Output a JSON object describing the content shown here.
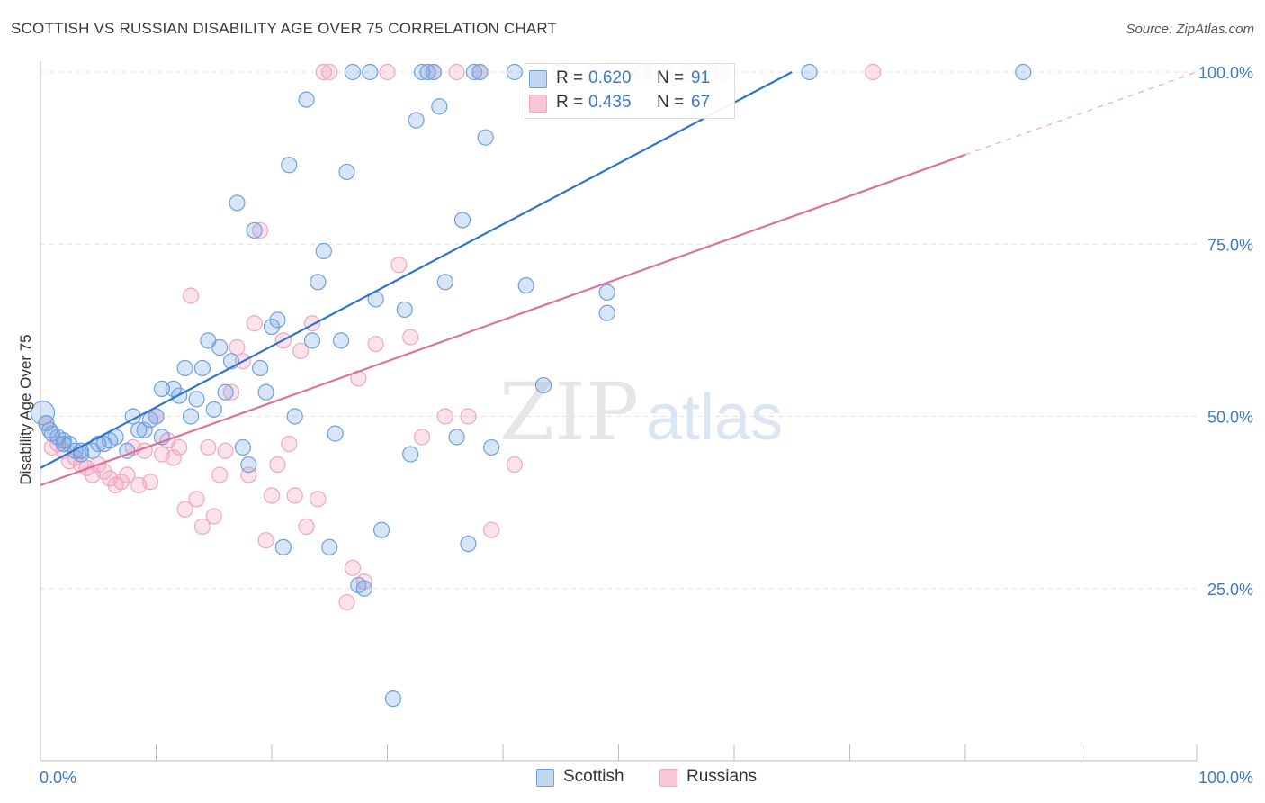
{
  "title": "SCOTTISH VS RUSSIAN DISABILITY AGE OVER 75 CORRELATION CHART",
  "source": "Source: ZipAtlas.com",
  "watermark": {
    "zip": "ZIP",
    "atlas": "atlas"
  },
  "legend": {
    "r_label": "R =",
    "n_label": "N =",
    "scottish": {
      "r": "0.620",
      "n": "91"
    },
    "russians": {
      "r": "0.435",
      "n": "67"
    }
  },
  "chart_data": {
    "type": "scatter",
    "title": "SCOTTISH VS RUSSIAN DISABILITY AGE OVER 75 CORRELATION CHART",
    "xlabel": "",
    "ylabel": "Disability Age Over 75",
    "xlim": [
      0,
      100
    ],
    "ylim": [
      0,
      100
    ],
    "x_tick_labels": [
      "0.0%",
      "100.0%"
    ],
    "y_tick_labels": [
      "25.0%",
      "50.0%",
      "75.0%",
      "100.0%"
    ],
    "y_ticks": [
      25,
      50,
      75,
      100
    ],
    "grid": true,
    "legend_position": "top-center",
    "colors": {
      "scottish": "#6fa0e0",
      "russians": "#f2a6c0",
      "scottish_line": "#2f74d0",
      "russians_line": "#e0709a",
      "tick_text": "#3c78c8"
    },
    "series": [
      {
        "name": "Scottish",
        "r": 0.62,
        "n": 91,
        "trend": {
          "x0": 0,
          "y0": 42.5,
          "x1": 65,
          "y1": 100
        },
        "points": [
          [
            0.2,
            50.5
          ],
          [
            0.8,
            48
          ],
          [
            1.5,
            47
          ],
          [
            2,
            46.5
          ],
          [
            2.5,
            46
          ],
          [
            3,
            45
          ],
          [
            3.5,
            45
          ],
          [
            4.5,
            45
          ],
          [
            5,
            46
          ],
          [
            6,
            46.5
          ],
          [
            6.5,
            47
          ],
          [
            7.5,
            45
          ],
          [
            8,
            50
          ],
          [
            8.5,
            48
          ],
          [
            9,
            48
          ],
          [
            9.5,
            49.5
          ],
          [
            10,
            50
          ],
          [
            10.5,
            47
          ],
          [
            10.5,
            54
          ],
          [
            11.5,
            54
          ],
          [
            12,
            53
          ],
          [
            12.5,
            57
          ],
          [
            13,
            50
          ],
          [
            13.5,
            52.5
          ],
          [
            14,
            57
          ],
          [
            14.5,
            61
          ],
          [
            15,
            51
          ],
          [
            15.5,
            60
          ],
          [
            16,
            53.5
          ],
          [
            16.5,
            58
          ],
          [
            17,
            81
          ],
          [
            17.5,
            45.5
          ],
          [
            18,
            43
          ],
          [
            18.5,
            77
          ],
          [
            19,
            57
          ],
          [
            19.5,
            53.5
          ],
          [
            20,
            63
          ],
          [
            20.5,
            64
          ],
          [
            21,
            31
          ],
          [
            21.5,
            86.5
          ],
          [
            22,
            50
          ],
          [
            23,
            96
          ],
          [
            23.5,
            61
          ],
          [
            24,
            69.5
          ],
          [
            24.5,
            74
          ],
          [
            25,
            31
          ],
          [
            25.5,
            47.5
          ],
          [
            26,
            61
          ],
          [
            26.5,
            85.5
          ],
          [
            27,
            100
          ],
          [
            27.5,
            25.5
          ],
          [
            28,
            25
          ],
          [
            28.5,
            100
          ],
          [
            29,
            67
          ],
          [
            29.5,
            33.5
          ],
          [
            30.5,
            9
          ],
          [
            31.5,
            65.5
          ],
          [
            32,
            44.5
          ],
          [
            32.5,
            93
          ],
          [
            33,
            100
          ],
          [
            33.5,
            100
          ],
          [
            34,
            100
          ],
          [
            34.5,
            95
          ],
          [
            35,
            69.5
          ],
          [
            36,
            47
          ],
          [
            36.5,
            78.5
          ],
          [
            37,
            31.5
          ],
          [
            37.5,
            100
          ],
          [
            38,
            100
          ],
          [
            38.5,
            90.5
          ],
          [
            39,
            45.5
          ],
          [
            41,
            100
          ],
          [
            42,
            69
          ],
          [
            43.5,
            54.5
          ],
          [
            45,
            100
          ],
          [
            48,
            100
          ],
          [
            49,
            68
          ],
          [
            49,
            65
          ],
          [
            52,
            100
          ],
          [
            53,
            100
          ],
          [
            54,
            100
          ],
          [
            56,
            100
          ],
          [
            58,
            100
          ],
          [
            59,
            100
          ],
          [
            66.5,
            100
          ],
          [
            85,
            100
          ],
          [
            0.5,
            49
          ],
          [
            1,
            47.5
          ],
          [
            2,
            46
          ],
          [
            3.5,
            44.5
          ],
          [
            5.5,
            46
          ]
        ]
      },
      {
        "name": "Russians",
        "r": 0.435,
        "n": 67,
        "trend": {
          "x0": 0,
          "y0": 40,
          "x1": 80,
          "y1": 88
        },
        "trend_dash": {
          "x0": 80,
          "y0": 88,
          "x1": 100,
          "y1": 100
        },
        "points": [
          [
            0.5,
            49
          ],
          [
            1,
            45.5
          ],
          [
            1.5,
            46
          ],
          [
            2,
            45
          ],
          [
            2.5,
            43.5
          ],
          [
            3,
            44
          ],
          [
            3.5,
            43
          ],
          [
            4,
            42.5
          ],
          [
            4.5,
            41.5
          ],
          [
            5,
            43
          ],
          [
            5.5,
            42
          ],
          [
            6,
            41
          ],
          [
            6.5,
            40
          ],
          [
            7,
            40.5
          ],
          [
            7.5,
            41.5
          ],
          [
            8,
            45.5
          ],
          [
            8.5,
            40
          ],
          [
            9,
            45
          ],
          [
            9.5,
            40.5
          ],
          [
            10,
            50
          ],
          [
            10.5,
            44.5
          ],
          [
            11,
            46.5
          ],
          [
            11.5,
            44
          ],
          [
            12,
            45.5
          ],
          [
            12.5,
            36.5
          ],
          [
            13,
            67.5
          ],
          [
            13.5,
            38
          ],
          [
            14,
            34
          ],
          [
            14.5,
            45.5
          ],
          [
            15,
            35.5
          ],
          [
            15.5,
            41.5
          ],
          [
            16,
            45
          ],
          [
            16.5,
            53.5
          ],
          [
            17,
            60
          ],
          [
            17.5,
            58
          ],
          [
            18,
            41.5
          ],
          [
            18.5,
            63.5
          ],
          [
            19,
            77
          ],
          [
            19.5,
            32
          ],
          [
            20,
            38.5
          ],
          [
            20.5,
            43
          ],
          [
            21,
            61
          ],
          [
            21.5,
            46
          ],
          [
            22,
            38.5
          ],
          [
            22.5,
            59.5
          ],
          [
            23,
            34
          ],
          [
            23.5,
            63.5
          ],
          [
            24,
            38
          ],
          [
            24.5,
            100
          ],
          [
            25,
            100
          ],
          [
            26.5,
            23
          ],
          [
            27,
            28
          ],
          [
            27.5,
            55.5
          ],
          [
            28,
            26
          ],
          [
            29,
            60.5
          ],
          [
            30,
            100
          ],
          [
            31,
            72
          ],
          [
            32,
            61.5
          ],
          [
            33,
            47
          ],
          [
            34,
            100
          ],
          [
            35,
            50
          ],
          [
            36,
            100
          ],
          [
            37,
            50
          ],
          [
            38,
            100
          ],
          [
            39,
            33.5
          ],
          [
            41,
            43
          ],
          [
            72,
            100
          ]
        ]
      }
    ]
  },
  "bottom_legend": [
    "Scottish",
    "Russians"
  ]
}
